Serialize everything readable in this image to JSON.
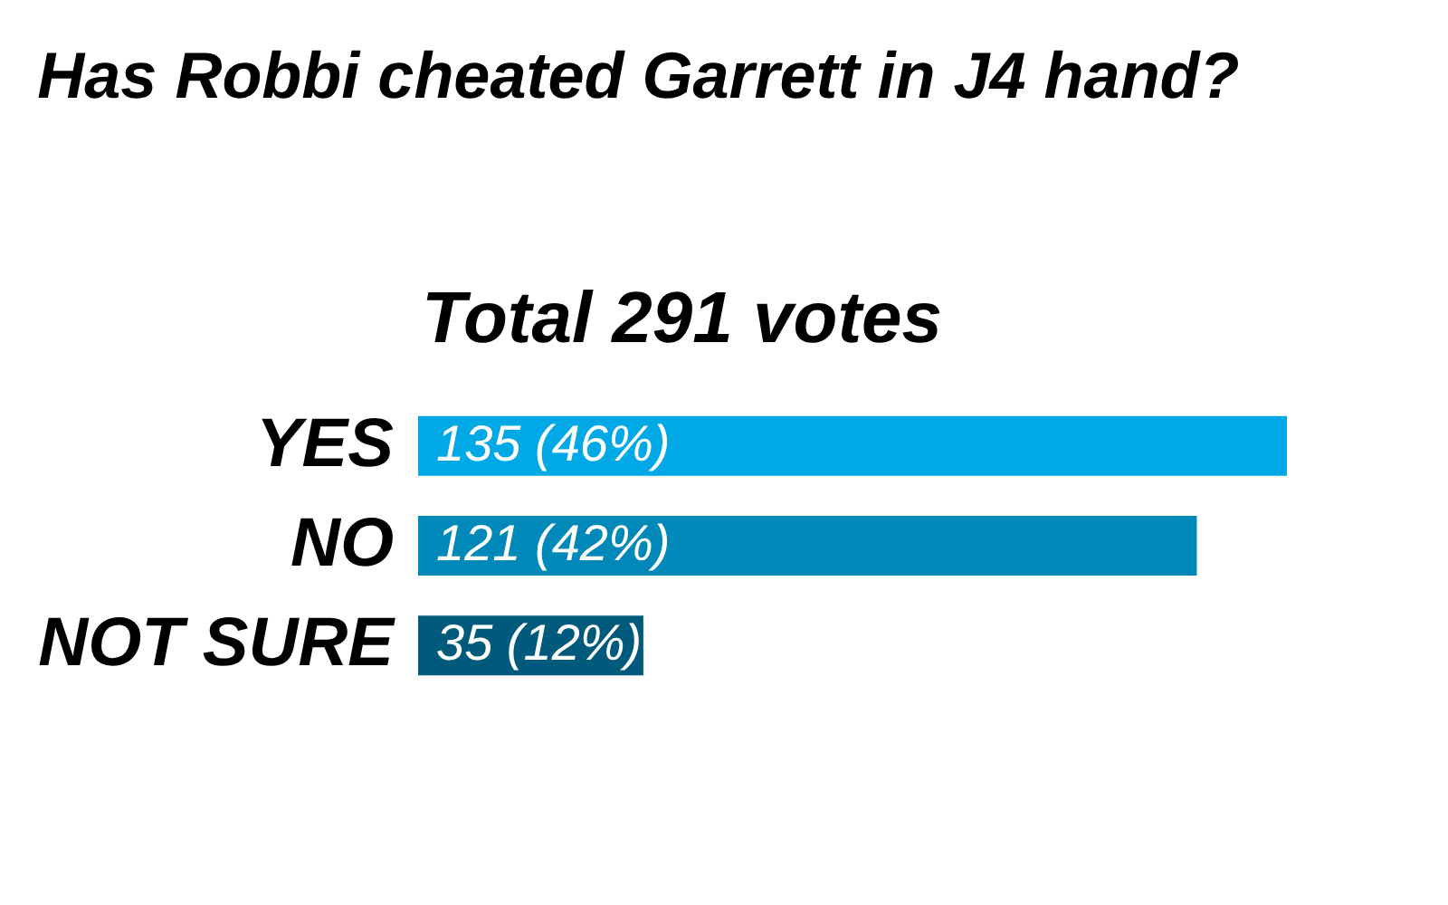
{
  "chart_data": {
    "type": "bar",
    "orientation": "horizontal",
    "title": "Has Robbi cheated Garrett in J4 hand?",
    "subtitle": "Total 291 votes",
    "categories": [
      "YES",
      "NO",
      "NOT SURE"
    ],
    "values": [
      135,
      121,
      35
    ],
    "colors": [
      "#00a8e6",
      "#0088b8",
      "#005a7c"
    ],
    "value_labels": [
      "135 (46%)",
      "121 (42%)",
      "35 (12%)"
    ]
  }
}
